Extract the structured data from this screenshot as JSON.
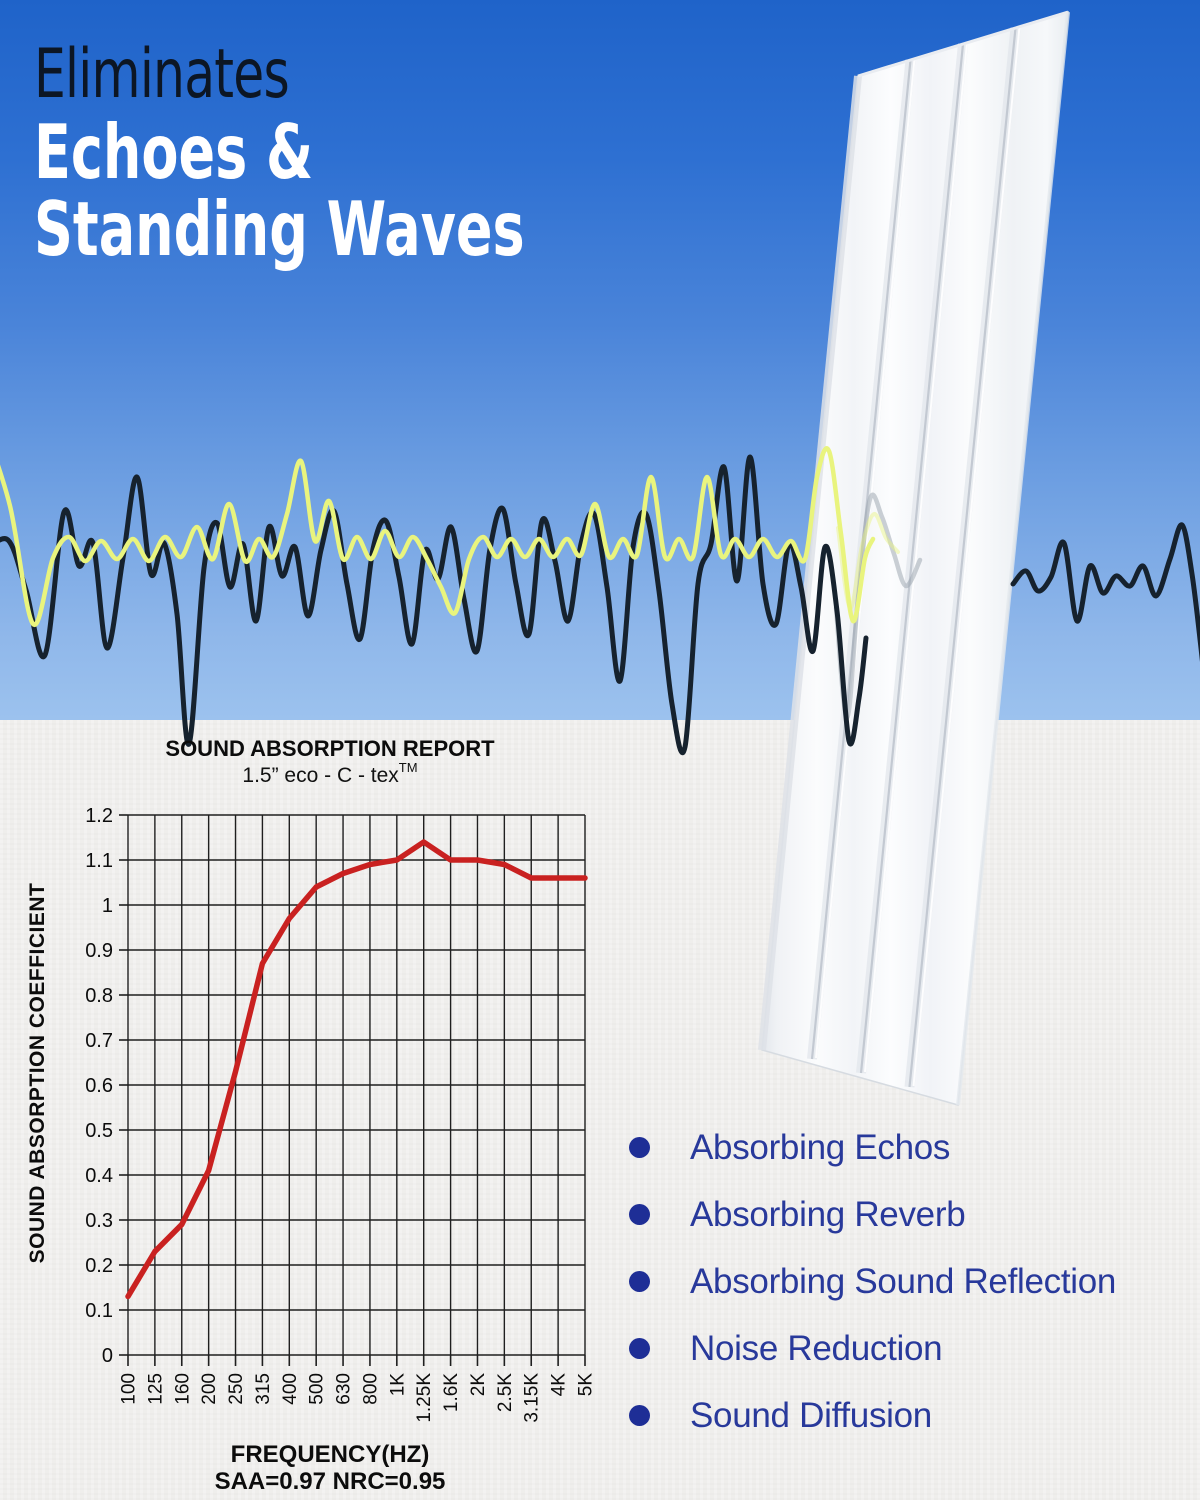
{
  "hero": {
    "title_dark": "Eliminates",
    "title_white_1": "Echoes &",
    "title_white_2": "Standing Waves"
  },
  "features": {
    "items": [
      "Absorbing Echos",
      "Absorbing Reverb",
      "Absorbing Sound Reflection",
      "Noise Reduction",
      "Sound Diffusion"
    ]
  },
  "chart_data": {
    "type": "line",
    "title": "SOUND ABSORPTION REPORT",
    "subtitle": "1.5” eco - C - tex",
    "subtitle_sup": "TM",
    "xlabel": "FREQUENCY(HZ)",
    "footnote": "SAA=0.97 NRC=0.95",
    "ylabel": "SOUND ABSORPTION COEFFICIENT",
    "categories": [
      "100",
      "125",
      "160",
      "200",
      "250",
      "315",
      "400",
      "500",
      "630",
      "800",
      "1K",
      "1.25K",
      "1.6K",
      "2K",
      "2.5K",
      "3.15K",
      "4K",
      "5K"
    ],
    "values": [
      0.13,
      0.23,
      0.29,
      0.41,
      0.63,
      0.87,
      0.97,
      1.04,
      1.07,
      1.09,
      1.1,
      1.14,
      1.1,
      1.1,
      1.09,
      1.06,
      1.06,
      1.06
    ],
    "yticks": [
      "0",
      "0.1",
      "0.2",
      "0.3",
      "0.4",
      "0.5",
      "0.6",
      "0.7",
      "0.8",
      "0.9",
      "1",
      "1.1",
      "1.2"
    ],
    "ylim": [
      0,
      1.2
    ],
    "grid": true,
    "legend": "none",
    "line_color": "#c92120",
    "grid_color": "#1f1f1f"
  },
  "colors": {
    "sky_top": "#1f63c9",
    "sky_bottom": "#9cc2ee",
    "paper": "#efeeec",
    "wave_dark": "#16222e",
    "wave_yellow": "#e9f47e",
    "bullet_dot": "#1e2e96",
    "bullet_text": "#28399b"
  }
}
